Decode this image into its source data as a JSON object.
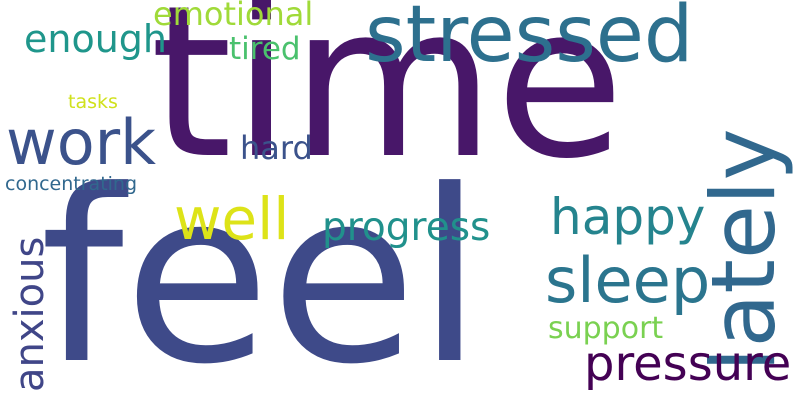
{
  "words": {
    "feel": {
      "text": "feel",
      "color": "#3e4a89"
    },
    "time": {
      "text": "time",
      "color": "#481769"
    },
    "stressed": {
      "text": "stressed",
      "color": "#2d708e"
    },
    "lately": {
      "text": "lately",
      "color": "#31688e"
    },
    "work": {
      "text": "work",
      "color": "#3b528b"
    },
    "sleep": {
      "text": "sleep",
      "color": "#2b758e"
    },
    "well": {
      "text": "well",
      "color": "#dde318"
    },
    "happy": {
      "text": "happy",
      "color": "#25848e"
    },
    "progress": {
      "text": "progress",
      "color": "#21918c"
    },
    "anxious": {
      "text": "anxious",
      "color": "#404688"
    },
    "pressure": {
      "text": "pressure",
      "color": "#440154"
    },
    "enough": {
      "text": "enough",
      "color": "#1f968b"
    },
    "emotional": {
      "text": "emotional",
      "color": "#a0da39"
    },
    "tired": {
      "text": "tired",
      "color": "#4ac16d"
    },
    "hard": {
      "text": "hard",
      "color": "#3b528b"
    },
    "support": {
      "text": "support",
      "color": "#7ad151"
    },
    "concentrating": {
      "text": "concentrating",
      "color": "#31688e"
    },
    "tasks": {
      "text": "tasks",
      "color": "#d0e11c"
    }
  }
}
